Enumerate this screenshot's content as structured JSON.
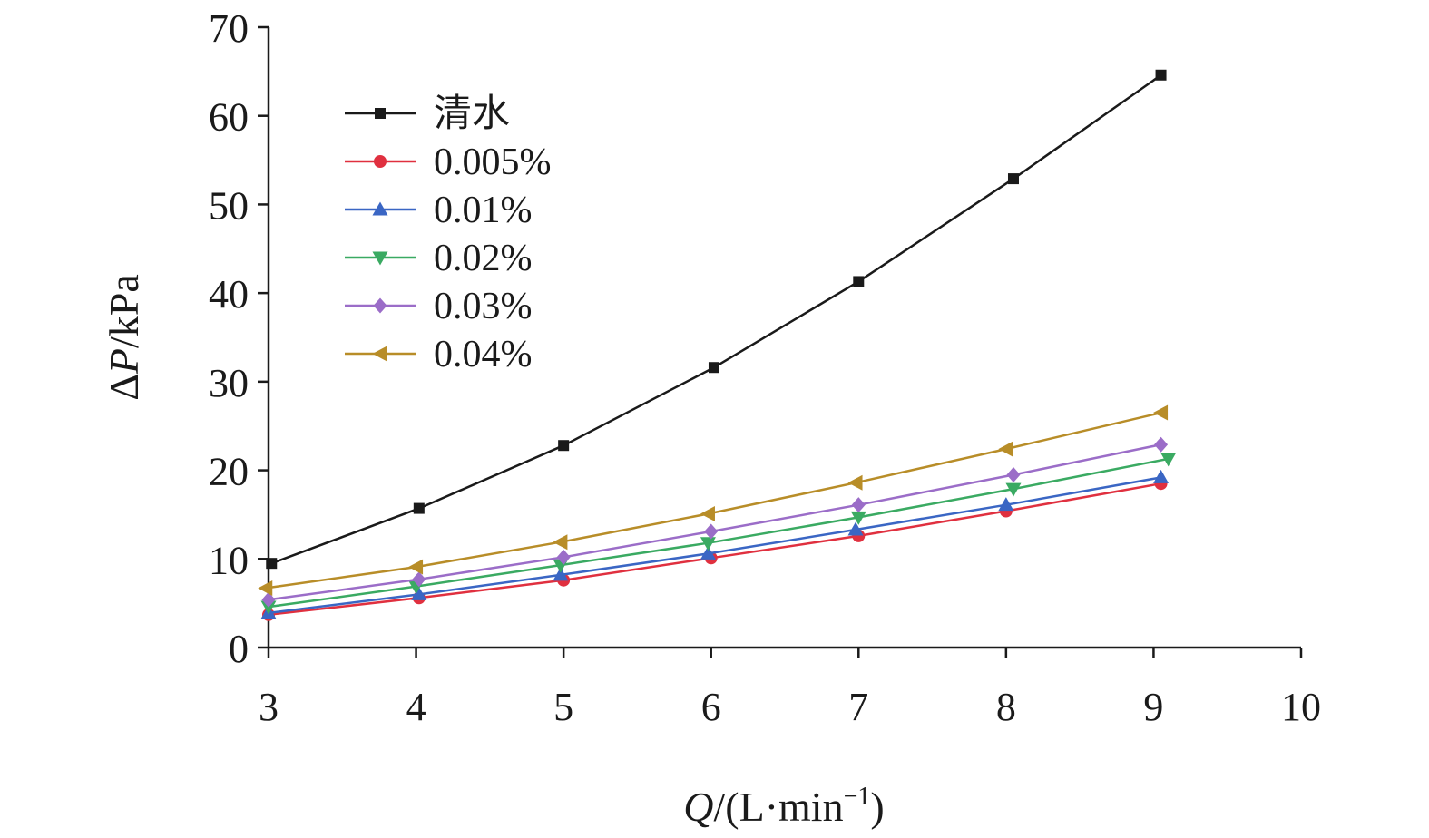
{
  "chart_data": {
    "type": "line",
    "xlabel_italic": "Q",
    "xlabel_rest": "/(L·min",
    "xlabel_sup": "−1",
    "xlabel_close": ")",
    "ylabel_delta": "Δ",
    "ylabel_italic": "P",
    "ylabel_rest": "/kPa",
    "xlim": [
      3,
      10
    ],
    "ylim": [
      0,
      70
    ],
    "xticks": [
      "3",
      "4",
      "5",
      "6",
      "7",
      "8",
      "9",
      "10"
    ],
    "yticks": [
      "0",
      "10",
      "20",
      "30",
      "40",
      "50",
      "60",
      "70"
    ],
    "grid": false,
    "legend_position": "top-left",
    "x": [
      3,
      4,
      5,
      6,
      7,
      8,
      9
    ],
    "series": [
      {
        "name": "清水",
        "color": "#1a1a1a",
        "marker": "square",
        "x": [
          3.02,
          4.02,
          5.0,
          6.02,
          7.0,
          8.05,
          9.05
        ],
        "values": [
          9.5,
          15.7,
          22.8,
          31.6,
          41.3,
          52.9,
          64.6
        ]
      },
      {
        "name": "0.005%",
        "color": "#e0303f",
        "marker": "circle",
        "x": [
          3.0,
          4.02,
          5.0,
          6.0,
          7.0,
          8.0,
          9.05
        ],
        "values": [
          3.7,
          5.6,
          7.6,
          10.1,
          12.6,
          15.4,
          18.5
        ]
      },
      {
        "name": "0.01%",
        "color": "#3a66c4",
        "marker": "triangle-up",
        "x": [
          3.0,
          4.02,
          4.98,
          5.98,
          6.98,
          8.0,
          9.05
        ],
        "values": [
          3.9,
          6.0,
          8.2,
          10.6,
          13.3,
          16.1,
          19.2
        ]
      },
      {
        "name": "0.02%",
        "color": "#3aaa62",
        "marker": "triangle-down",
        "x": [
          3.0,
          4.0,
          4.98,
          5.98,
          7.0,
          8.05,
          9.1
        ],
        "values": [
          4.6,
          6.9,
          9.3,
          11.8,
          14.7,
          17.9,
          21.3
        ]
      },
      {
        "name": "0.03%",
        "color": "#9b6dc8",
        "marker": "diamond",
        "x": [
          3.0,
          4.02,
          5.0,
          6.0,
          7.0,
          8.05,
          9.05
        ],
        "values": [
          5.4,
          7.7,
          10.2,
          13.1,
          16.1,
          19.5,
          22.9
        ]
      },
      {
        "name": "0.04%",
        "color": "#b88d28",
        "marker": "triangle-left",
        "x": [
          2.98,
          4.0,
          4.98,
          5.98,
          6.98,
          8.0,
          9.05
        ],
        "values": [
          6.7,
          9.1,
          11.9,
          15.1,
          18.6,
          22.4,
          26.5
        ]
      }
    ]
  }
}
